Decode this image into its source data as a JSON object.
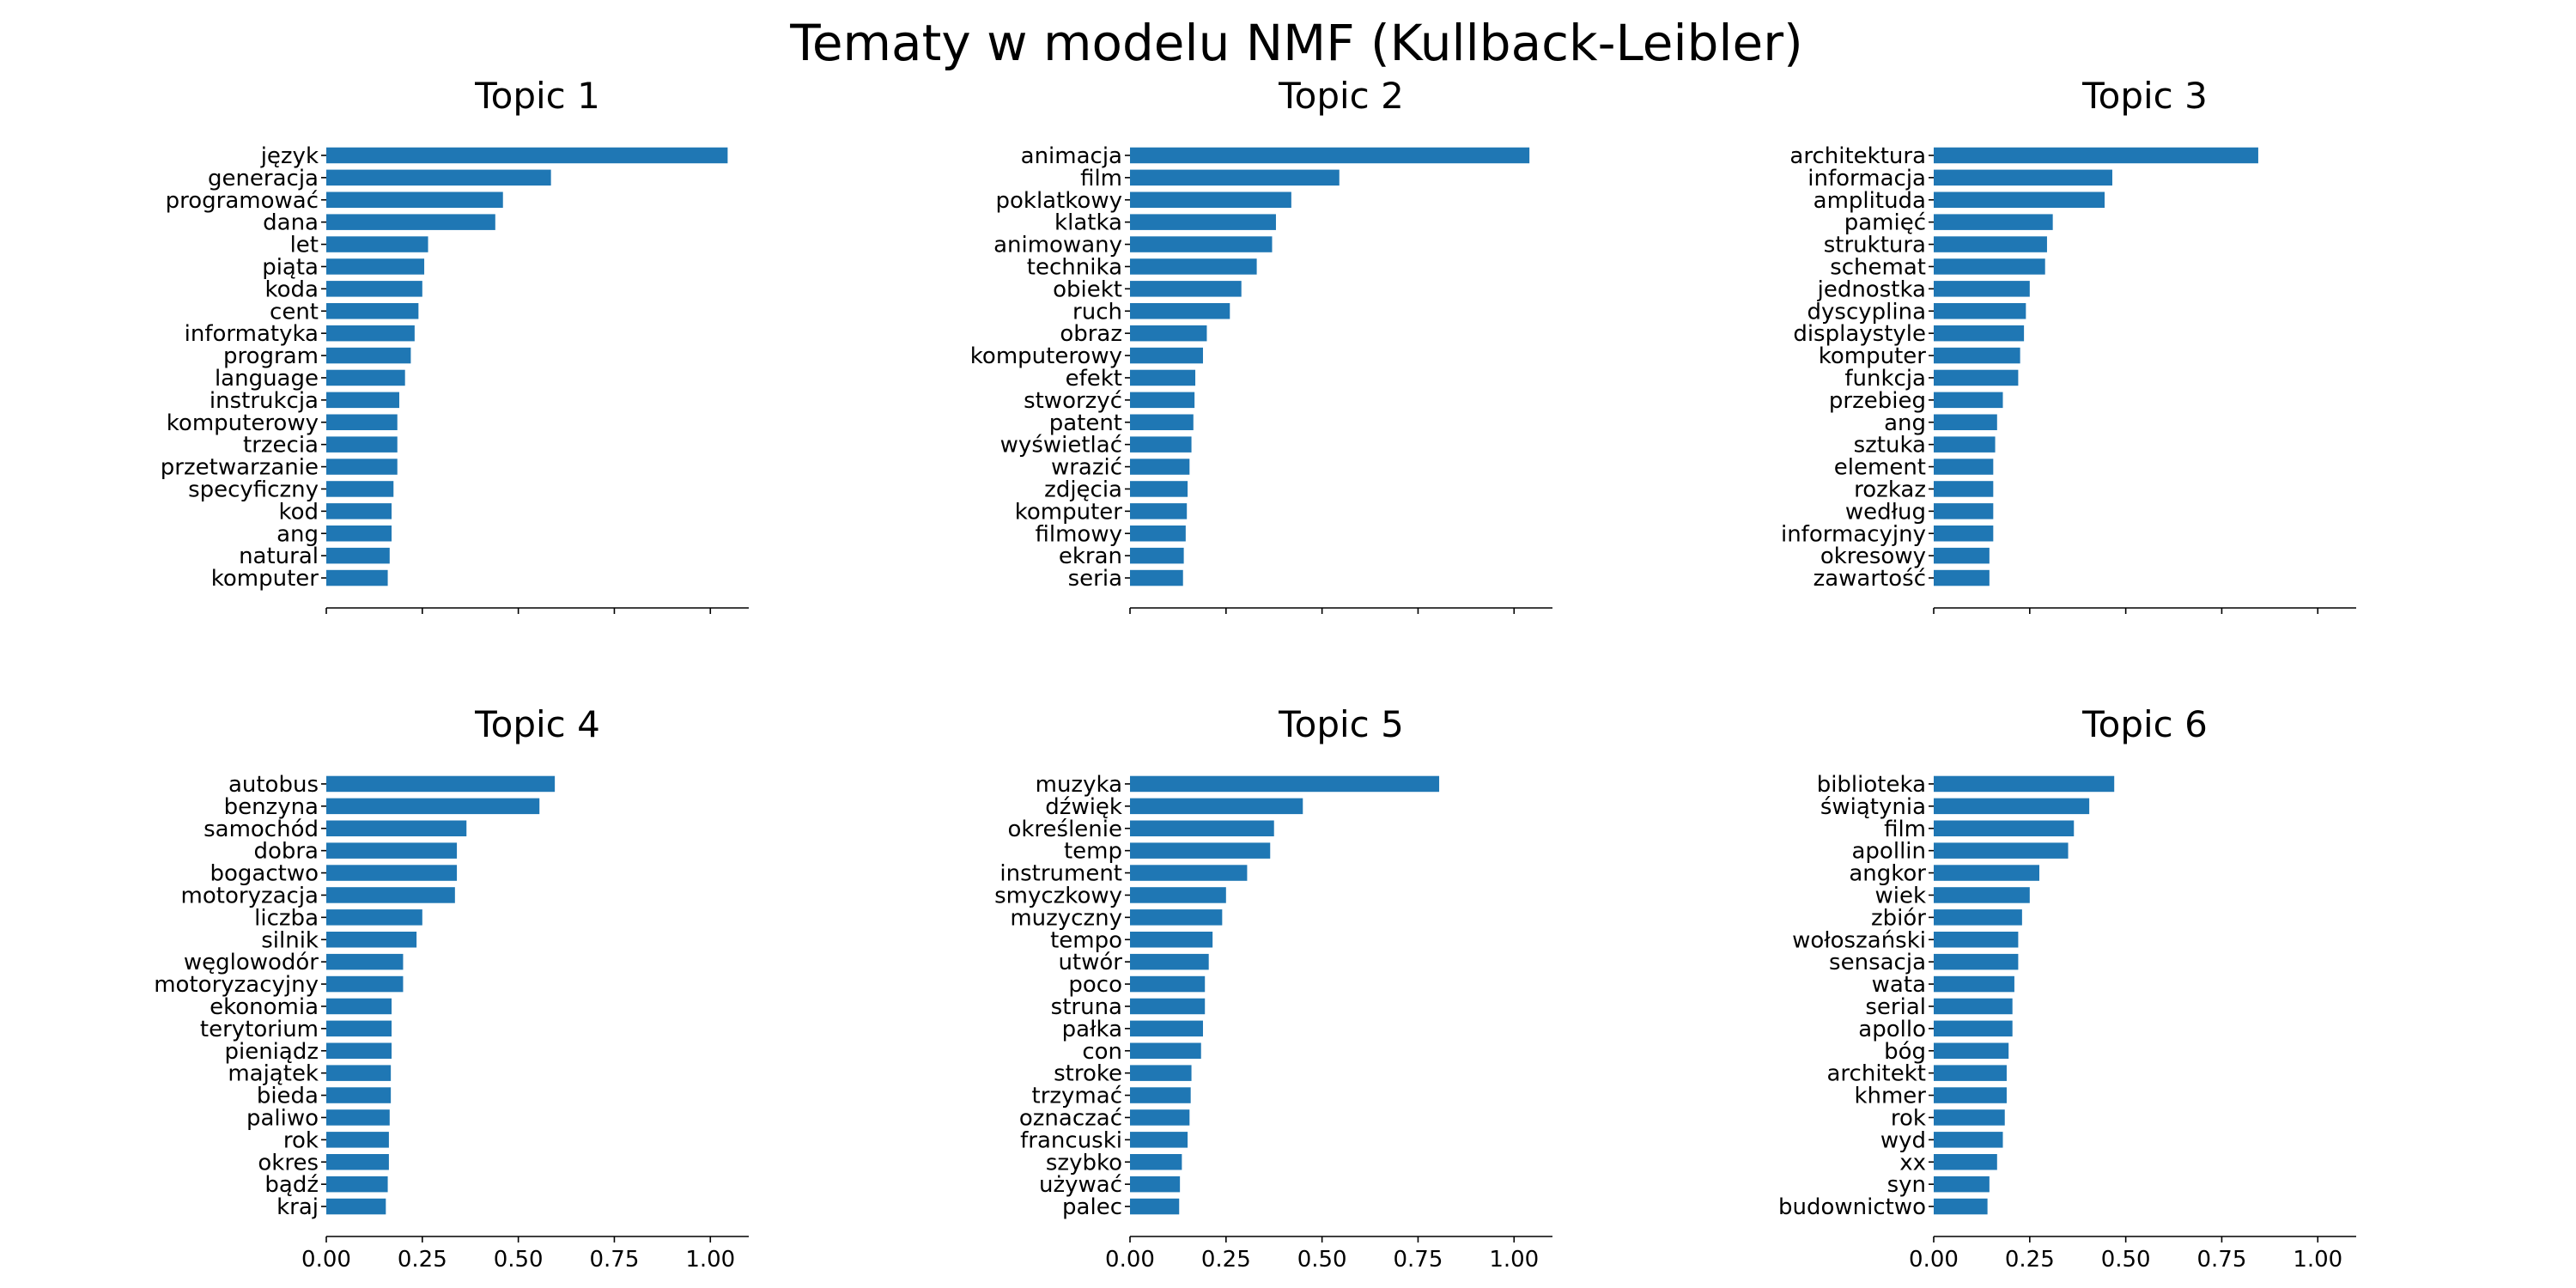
{
  "suptitle": "Tematy w modelu NMF (Kullback-Leibler)",
  "colors": {
    "bar": "#1f77b4",
    "axis": "#000000",
    "text": "#000000"
  },
  "chart_data": [
    {
      "type": "bar",
      "orientation": "horizontal",
      "title": "Topic 1",
      "xlim": [
        0,
        1.1
      ],
      "xticks": [
        "0.00",
        "0.25",
        "0.50",
        "0.75",
        "1.00"
      ],
      "show_xtick_labels": false,
      "categories": [
        "język",
        "generacja",
        "programować",
        "dana",
        "let",
        "piąta",
        "koda",
        "cent",
        "informatyka",
        "program",
        "language",
        "instrukcja",
        "komputerowy",
        "trzecia",
        "przetwarzanie",
        "specyficzny",
        "kod",
        "ang",
        "natural",
        "komputer"
      ],
      "values": [
        1.045,
        0.585,
        0.46,
        0.44,
        0.265,
        0.255,
        0.25,
        0.24,
        0.23,
        0.22,
        0.205,
        0.19,
        0.185,
        0.185,
        0.185,
        0.175,
        0.17,
        0.17,
        0.165,
        0.16
      ]
    },
    {
      "type": "bar",
      "orientation": "horizontal",
      "title": "Topic 2",
      "xlim": [
        0,
        1.1
      ],
      "xticks": [
        "0.00",
        "0.25",
        "0.50",
        "0.75",
        "1.00"
      ],
      "show_xtick_labels": false,
      "categories": [
        "animacja",
        "film",
        "poklatkowy",
        "klatka",
        "animowany",
        "technika",
        "obiekt",
        "ruch",
        "obraz",
        "komputerowy",
        "efekt",
        "stworzyć",
        "patent",
        "wyświetlać",
        "wrazić",
        "zdjęcia",
        "komputer",
        "filmowy",
        "ekran",
        "seria"
      ],
      "values": [
        1.04,
        0.545,
        0.42,
        0.38,
        0.37,
        0.33,
        0.29,
        0.26,
        0.2,
        0.19,
        0.17,
        0.168,
        0.165,
        0.16,
        0.155,
        0.15,
        0.148,
        0.145,
        0.14,
        0.138
      ]
    },
    {
      "type": "bar",
      "orientation": "horizontal",
      "title": "Topic 3",
      "xlim": [
        0,
        1.1
      ],
      "xticks": [
        "0.00",
        "0.25",
        "0.50",
        "0.75",
        "1.00"
      ],
      "show_xtick_labels": false,
      "categories": [
        "architektura",
        "informacja",
        "amplituda",
        "pamięć",
        "struktura",
        "schemat",
        "jednostka",
        "dyscyplina",
        "displaystyle",
        "komputer",
        "funkcja",
        "przebieg",
        "ang",
        "sztuka",
        "element",
        "rozkaz",
        "według",
        "informacyjny",
        "okresowy",
        "zawartość"
      ],
      "values": [
        0.845,
        0.465,
        0.445,
        0.31,
        0.295,
        0.29,
        0.25,
        0.24,
        0.235,
        0.225,
        0.22,
        0.18,
        0.165,
        0.16,
        0.155,
        0.155,
        0.155,
        0.155,
        0.145,
        0.145
      ]
    },
    {
      "type": "bar",
      "orientation": "horizontal",
      "title": "Topic 4",
      "xlim": [
        0,
        1.1
      ],
      "xticks": [
        "0.00",
        "0.25",
        "0.50",
        "0.75",
        "1.00"
      ],
      "show_xtick_labels": true,
      "categories": [
        "autobus",
        "benzyna",
        "samochód",
        "dobra",
        "bogactwo",
        "motoryzacja",
        "liczba",
        "silnik",
        "węglowodór",
        "motoryzacyjny",
        "ekonomia",
        "terytorium",
        "pieniądz",
        "majątek",
        "bieda",
        "paliwo",
        "rok",
        "okres",
        "bądź",
        "kraj"
      ],
      "values": [
        0.595,
        0.555,
        0.365,
        0.34,
        0.34,
        0.335,
        0.25,
        0.235,
        0.2,
        0.2,
        0.17,
        0.17,
        0.17,
        0.168,
        0.168,
        0.165,
        0.163,
        0.163,
        0.16,
        0.155
      ]
    },
    {
      "type": "bar",
      "orientation": "horizontal",
      "title": "Topic 5",
      "xlim": [
        0,
        1.1
      ],
      "xticks": [
        "0.00",
        "0.25",
        "0.50",
        "0.75",
        "1.00"
      ],
      "show_xtick_labels": true,
      "categories": [
        "muzyka",
        "dźwięk",
        "określenie",
        "temp",
        "instrument",
        "smyczkowy",
        "muzyczny",
        "tempo",
        "utwór",
        "poco",
        "struna",
        "pałka",
        "con",
        "stroke",
        "trzymać",
        "oznaczać",
        "francuski",
        "szybko",
        "używać",
        "palec"
      ],
      "values": [
        0.805,
        0.45,
        0.375,
        0.365,
        0.305,
        0.25,
        0.24,
        0.215,
        0.205,
        0.195,
        0.195,
        0.19,
        0.185,
        0.16,
        0.158,
        0.155,
        0.15,
        0.135,
        0.13,
        0.128
      ]
    },
    {
      "type": "bar",
      "orientation": "horizontal",
      "title": "Topic 6",
      "xlim": [
        0,
        1.1
      ],
      "xticks": [
        "0.00",
        "0.25",
        "0.50",
        "0.75",
        "1.00"
      ],
      "show_xtick_labels": true,
      "categories": [
        "biblioteka",
        "świątynia",
        "film",
        "apollin",
        "angkor",
        "wiek",
        "zbiór",
        "wołoszański",
        "sensacja",
        "wata",
        "serial",
        "apollo",
        "bóg",
        "architekt",
        "khmer",
        "rok",
        "wyd",
        "xx",
        "syn",
        "budownictwo"
      ],
      "values": [
        0.47,
        0.405,
        0.365,
        0.35,
        0.275,
        0.25,
        0.23,
        0.22,
        0.22,
        0.21,
        0.205,
        0.205,
        0.195,
        0.19,
        0.19,
        0.185,
        0.18,
        0.165,
        0.145,
        0.14
      ]
    }
  ]
}
